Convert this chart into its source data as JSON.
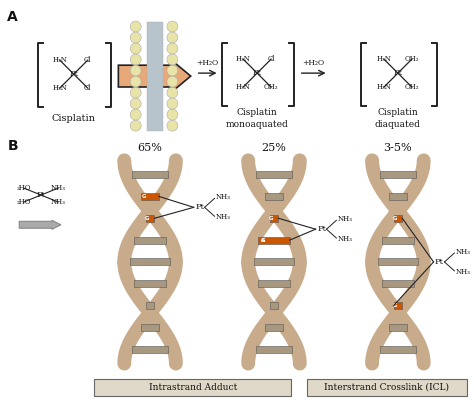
{
  "bg_color": "#ffffff",
  "panel_a_label": "A",
  "panel_b_label": "B",
  "cisplatin_label": "Cisplatin",
  "monoaquated_label": "Cisplatin\nmonoaquated",
  "diaquated_label": "Cisplatin\ndiaquated",
  "water_label1": "+H₂O",
  "water_label2": "+H₂O",
  "pct_65": "65%",
  "pct_25": "25%",
  "pct_35": "3-5%",
  "intrastrand_label": "Intrastrand Adduct",
  "interstrand_label": "Interstrand Crosslink (ICL)",
  "dna_helix_color": "#c8ab8a",
  "dna_bar_color": "#a89880",
  "dna_bar_light": "#c8b89a",
  "orange_adduct": "#cc5500",
  "membrane_ball_color": "#e8e4a8",
  "membrane_bar_color": "#b8c4cc",
  "membrane_outline": "#aaaaaa",
  "arrow_fill": "#e8a878",
  "arrow_outline": "#222222",
  "gray_arrow_fill": "#aaaaaa",
  "gray_arrow_outline": "#888888",
  "box_face": "#e0d8c8",
  "box_edge": "#666666",
  "bond_color": "#222222",
  "text_color": "#111111"
}
